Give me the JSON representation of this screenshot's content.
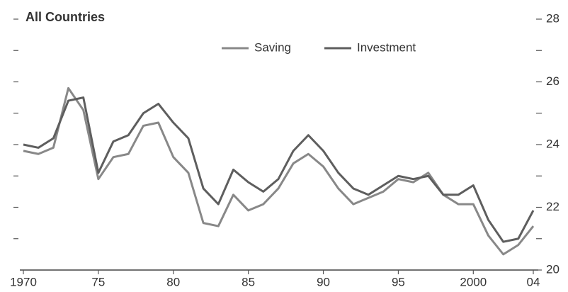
{
  "chart_data": {
    "type": "line",
    "title": "All Countries",
    "x": [
      1970,
      1971,
      1972,
      1973,
      1974,
      1975,
      1976,
      1977,
      1978,
      1979,
      1980,
      1981,
      1982,
      1983,
      1984,
      1985,
      1986,
      1987,
      1988,
      1989,
      1990,
      1991,
      1992,
      1993,
      1994,
      1995,
      1996,
      1997,
      1998,
      1999,
      2000,
      2001,
      2002,
      2003,
      2004
    ],
    "series": [
      {
        "name": "Saving",
        "color": "#888888",
        "values": [
          23.8,
          23.7,
          23.9,
          25.8,
          25.1,
          22.9,
          23.6,
          23.7,
          24.6,
          24.7,
          23.6,
          23.1,
          21.5,
          21.4,
          22.4,
          21.9,
          22.1,
          22.6,
          23.4,
          23.7,
          23.3,
          22.6,
          22.1,
          22.3,
          22.5,
          22.9,
          22.8,
          23.1,
          22.4,
          22.1,
          22.1,
          21.1,
          20.5,
          20.8,
          21.4
        ]
      },
      {
        "name": "Investment",
        "color": "#5e5e5e",
        "values": [
          24.0,
          23.9,
          24.2,
          25.4,
          25.5,
          23.1,
          24.1,
          24.3,
          25.0,
          25.3,
          24.7,
          24.2,
          22.6,
          22.1,
          23.2,
          22.8,
          22.5,
          22.9,
          23.8,
          24.3,
          23.8,
          23.1,
          22.6,
          22.4,
          22.7,
          23.0,
          22.9,
          23.0,
          22.4,
          22.4,
          22.7,
          21.6,
          20.9,
          21.0,
          21.9
        ]
      }
    ],
    "xlim": [
      1970,
      2004
    ],
    "xticks": [
      {
        "value": 1970,
        "label": "1970"
      },
      {
        "value": 1975,
        "label": "75"
      },
      {
        "value": 1980,
        "label": "80"
      },
      {
        "value": 1985,
        "label": "85"
      },
      {
        "value": 1990,
        "label": "90"
      },
      {
        "value": 1995,
        "label": "95"
      },
      {
        "value": 2000,
        "label": "2000"
      },
      {
        "value": 2004,
        "label": "04"
      }
    ],
    "ylim": [
      20,
      28
    ],
    "yticks": [
      20,
      22,
      24,
      26,
      28
    ],
    "yminorticks": [
      21,
      23,
      25,
      27
    ]
  }
}
